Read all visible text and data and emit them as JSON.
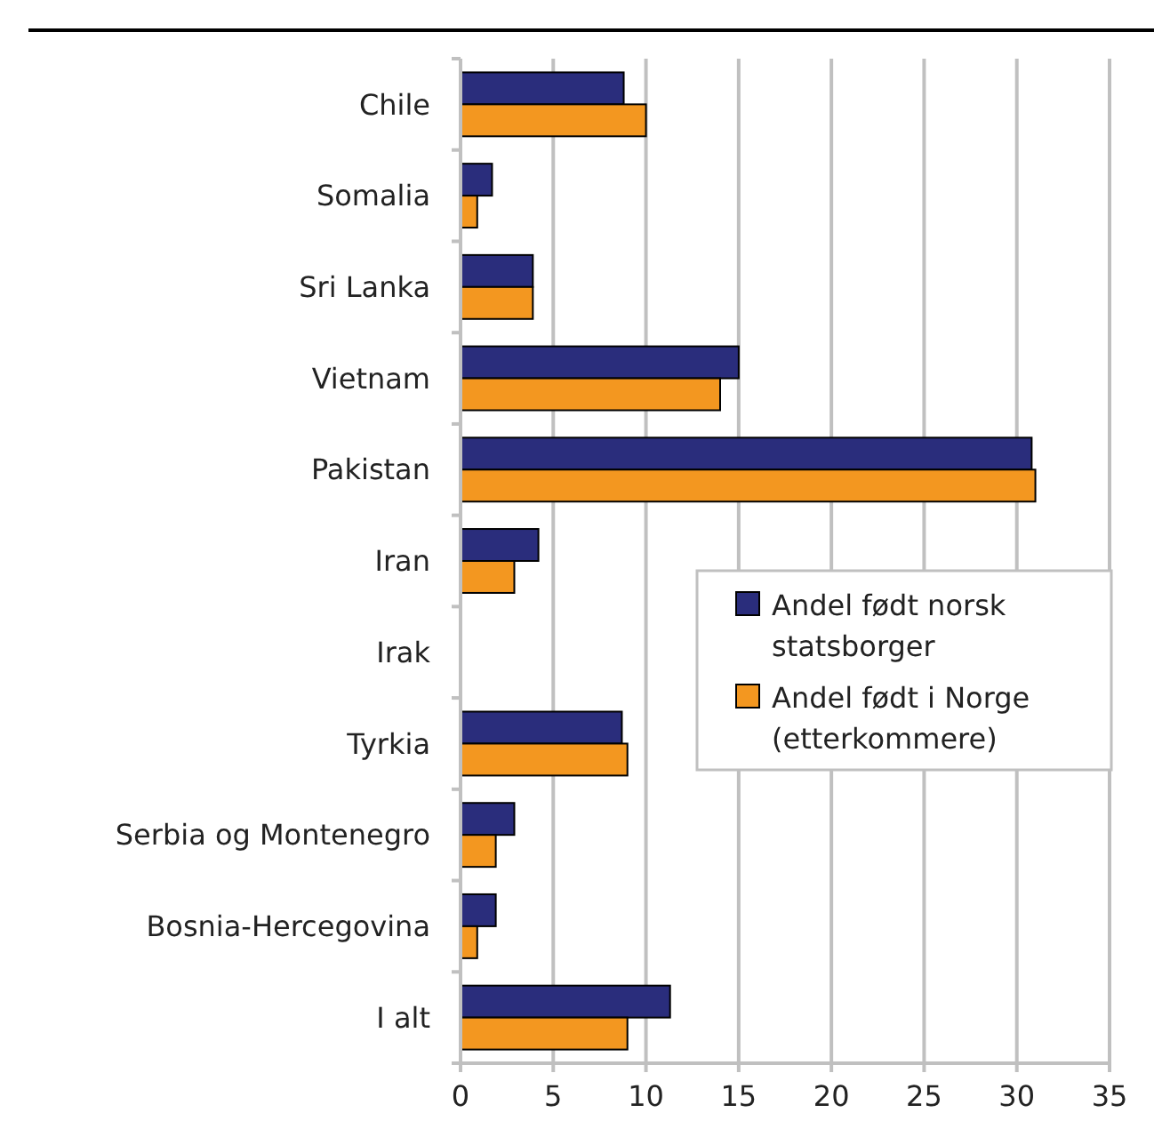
{
  "chart_data": {
    "type": "bar",
    "orientation": "horizontal",
    "categories": [
      "Chile",
      "Somalia",
      "Sri Lanka",
      "Vietnam",
      "Pakistan",
      "Iran",
      "Irak",
      "Tyrkia",
      "Serbia og Montenegro",
      "Bosnia-Hercegovina",
      "I alt"
    ],
    "series": [
      {
        "name": "Andel født norsk statsborger",
        "color": "#2a2d7c",
        "values": [
          8.8,
          1.7,
          3.9,
          15,
          30.8,
          4.2,
          null,
          8.7,
          2.9,
          1.9,
          11.3
        ]
      },
      {
        "name": "Andel født i Norge (etterkommere)",
        "color": "#f39720",
        "values": [
          10,
          0.9,
          3.9,
          14,
          31,
          2.9,
          null,
          9,
          1.9,
          0.9,
          9
        ]
      }
    ],
    "xlim": [
      0,
      35
    ],
    "xticks": [
      0,
      5,
      10,
      15,
      20,
      25,
      30,
      35
    ],
    "grid": "x",
    "legend": "right"
  }
}
